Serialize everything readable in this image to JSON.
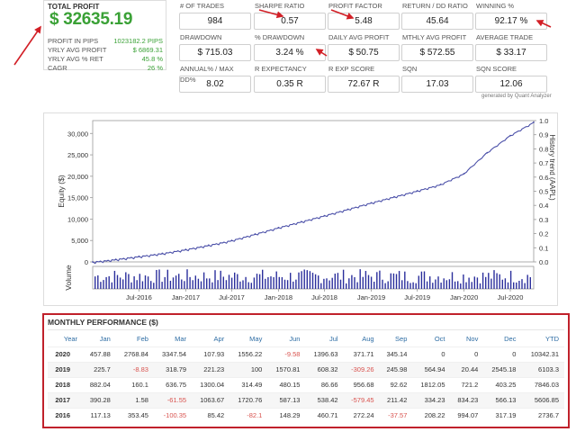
{
  "summary": {
    "title": "TOTAL PROFIT",
    "value": "$ 32635.19",
    "rows": [
      {
        "label": "PROFIT IN PIPS",
        "value": "1023182.2 PIPS"
      },
      {
        "label": "YRLY AVG PROFIT",
        "value": "$ 6869.31"
      },
      {
        "label": "YRLY AVG % RET",
        "value": "45.8 %"
      },
      {
        "label": "CAGR",
        "value": "26 %"
      }
    ]
  },
  "stats": [
    {
      "label": "# OF TRADES",
      "value": "984"
    },
    {
      "label": "SHARPE RATIO",
      "value": "0.57"
    },
    {
      "label": "PROFIT FACTOR",
      "value": "5.48"
    },
    {
      "label": "RETURN / DD RATIO",
      "value": "45.64"
    },
    {
      "label": "WINNING %",
      "value": "92.17 %"
    },
    {
      "label": "DRAWDOWN",
      "value": "$ 715.03"
    },
    {
      "label": "% DRAWDOWN",
      "value": "3.24 %"
    },
    {
      "label": "DAILY AVG PROFIT",
      "value": "$ 50.75"
    },
    {
      "label": "MTHLY AVG PROFIT",
      "value": "$ 572.55"
    },
    {
      "label": "AVERAGE TRADE",
      "value": "$ 33.17"
    },
    {
      "label": "ANNUAL% / MAX DD%",
      "value": "8.02"
    },
    {
      "label": "R EXPECTANCY",
      "value": "0.35 R"
    },
    {
      "label": "R EXP SCORE",
      "value": "72.67 R"
    },
    {
      "label": "SQN",
      "value": "17.03"
    },
    {
      "label": "SQN SCORE",
      "value": "12.06"
    }
  ],
  "generated_by": "generated by Quant Analyzer",
  "annotation_arrow_color": "#d21f26",
  "chart_data": {
    "type": "line",
    "ylabel": "Equity ($)",
    "y2label": "History trend (AAPL)",
    "volume_label": "Volume",
    "yticks": [
      "30,000",
      "25,000",
      "20,000",
      "15,000",
      "10,000",
      "5,000",
      "0"
    ],
    "ylim": [
      0,
      33000
    ],
    "y2ticks": [
      "1.0",
      "0.9",
      "0.8",
      "0.7",
      "0.6",
      "0.5",
      "0.4",
      "0.3",
      "0.2",
      "0.1",
      "0.0"
    ],
    "xticks": [
      "Jul-2016",
      "Jan-2017",
      "Jul-2017",
      "Jan-2018",
      "Jul-2018",
      "Jan-2019",
      "Jul-2019",
      "Jan-2020",
      "Jul-2020"
    ],
    "x_start": "2016-01-01",
    "x_end": "2020-10-01",
    "series": [
      {
        "color": "#4a4fa8",
        "x": [
          "2016-01-01",
          "2016-04-01",
          "2016-07-01",
          "2016-10-01",
          "2017-01-01",
          "2017-04-01",
          "2017-07-01",
          "2017-10-01",
          "2018-01-01",
          "2018-04-01",
          "2018-07-01",
          "2018-10-01",
          "2019-01-01",
          "2019-04-01",
          "2019-07-01",
          "2019-10-01",
          "2020-01-01",
          "2020-04-01",
          "2020-07-01",
          "2020-10-01"
        ],
        "values": [
          0,
          600,
          1300,
          2000,
          2900,
          3900,
          5000,
          6500,
          8000,
          9400,
          10800,
          12300,
          13800,
          15200,
          16600,
          18100,
          20600,
          25500,
          29500,
          32600
        ]
      }
    ]
  },
  "monthly": {
    "title": "MONTHLY PERFORMANCE ($)",
    "headers": [
      "Year",
      "Jan",
      "Feb",
      "Mar",
      "Apr",
      "May",
      "Jun",
      "Jul",
      "Aug",
      "Sep",
      "Oct",
      "Nov",
      "Dec",
      "YTD"
    ],
    "rows": [
      [
        "2020",
        "457.88",
        "2768.84",
        "3347.54",
        "107.93",
        "1556.22",
        "-9.58",
        "1396.63",
        "371.71",
        "345.14",
        "0",
        "0",
        "0",
        "10342.31"
      ],
      [
        "2019",
        "225.7",
        "-8.83",
        "318.79",
        "221.23",
        "100",
        "1570.81",
        "608.32",
        "-309.26",
        "245.98",
        "564.94",
        "20.44",
        "2545.18",
        "6103.3"
      ],
      [
        "2018",
        "882.04",
        "160.1",
        "636.75",
        "1300.04",
        "314.49",
        "480.15",
        "86.66",
        "956.68",
        "92.62",
        "1812.05",
        "721.2",
        "403.25",
        "7846.03"
      ],
      [
        "2017",
        "390.28",
        "1.58",
        "-61.55",
        "1063.67",
        "1720.76",
        "587.13",
        "538.42",
        "-579.45",
        "211.42",
        "334.23",
        "834.23",
        "566.13",
        "5606.85"
      ],
      [
        "2016",
        "117.13",
        "353.45",
        "-100.35",
        "85.42",
        "-82.1",
        "148.29",
        "460.71",
        "272.24",
        "-37.57",
        "208.22",
        "994.07",
        "317.19",
        "2736.7"
      ]
    ]
  }
}
